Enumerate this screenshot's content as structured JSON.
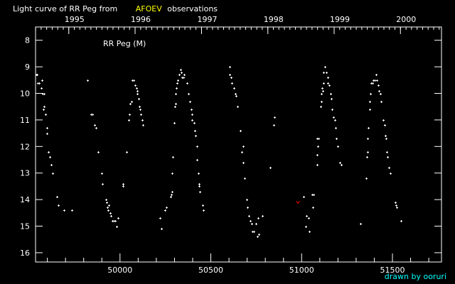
{
  "title": {
    "prefix": "Light curve of RR Peg from",
    "source": "AFOEV",
    "suffix": "observations"
  },
  "credit": "drawn by ooruri",
  "colors": {
    "background": "#000000",
    "axis": "#ffffff",
    "points": "#ffffff",
    "source": "#ffff00",
    "credit": "#00ffff",
    "upper_limit": "#ff0000"
  },
  "chart_data": {
    "type": "scatter",
    "annotation": "RR Peg (M)",
    "xlim": [
      49535,
      51770
    ],
    "ylim": [
      16.35,
      7.5
    ],
    "y_inverted": true,
    "grid": false,
    "x_ticks": [
      50000,
      50500,
      51000,
      51500
    ],
    "x_tick_labels": [
      "50000",
      "50500",
      "51000",
      "51500"
    ],
    "y_ticks": [
      8,
      9,
      10,
      11,
      12,
      13,
      14,
      15,
      16
    ],
    "y_tick_labels": [
      "8",
      "9",
      "10",
      "11",
      "12",
      "13",
      "14",
      "15",
      "16"
    ],
    "top_axis": {
      "labels": [
        "1995",
        "1996",
        "1997",
        "1998",
        "1999",
        "2000"
      ],
      "values": [
        49718,
        50083,
        50449,
        50814,
        51179,
        51544
      ]
    },
    "upper_limits": [
      [
        50980,
        14.1
      ]
    ],
    "points": [
      [
        49539,
        9.3
      ],
      [
        49543,
        9.3
      ],
      [
        49547,
        9.6
      ],
      [
        49555,
        9.6
      ],
      [
        49570,
        9.5
      ],
      [
        49566,
        9.8
      ],
      [
        49574,
        10.0
      ],
      [
        49582,
        10.0
      ],
      [
        49578,
        10.6
      ],
      [
        49582,
        10.5
      ],
      [
        49590,
        10.8
      ],
      [
        49598,
        11.3
      ],
      [
        49598,
        11.5
      ],
      [
        49605,
        12.2
      ],
      [
        49613,
        12.4
      ],
      [
        49621,
        12.7
      ],
      [
        49629,
        13.0
      ],
      [
        49652,
        13.9
      ],
      [
        49660,
        14.2
      ],
      [
        49691,
        14.4
      ],
      [
        49734,
        14.4
      ],
      [
        49820,
        9.5
      ],
      [
        49840,
        10.8
      ],
      [
        49848,
        10.8
      ],
      [
        49859,
        11.2
      ],
      [
        49867,
        11.3
      ],
      [
        49879,
        12.2
      ],
      [
        49898,
        13.0
      ],
      [
        49902,
        13.4
      ],
      [
        49922,
        14.0
      ],
      [
        49926,
        14.1
      ],
      [
        49930,
        14.3
      ],
      [
        49934,
        14.4
      ],
      [
        49938,
        14.2
      ],
      [
        49945,
        14.5
      ],
      [
        49949,
        14.6
      ],
      [
        49957,
        14.8
      ],
      [
        49965,
        14.8
      ],
      [
        49973,
        14.8
      ],
      [
        49980,
        15.0
      ],
      [
        49988,
        14.7
      ],
      [
        50016,
        13.4
      ],
      [
        50016,
        13.5
      ],
      [
        50035,
        12.2
      ],
      [
        50047,
        11.0
      ],
      [
        50051,
        10.8
      ],
      [
        50055,
        10.4
      ],
      [
        50062,
        10.3
      ],
      [
        50066,
        9.5
      ],
      [
        50074,
        9.5
      ],
      [
        50082,
        9.7
      ],
      [
        50090,
        9.8
      ],
      [
        50094,
        9.9
      ],
      [
        50094,
        10.0
      ],
      [
        50102,
        10.2
      ],
      [
        50105,
        10.5
      ],
      [
        50109,
        10.6
      ],
      [
        50113,
        10.8
      ],
      [
        50121,
        11.0
      ],
      [
        50125,
        11.2
      ],
      [
        50219,
        14.7
      ],
      [
        50227,
        15.1
      ],
      [
        50246,
        14.4
      ],
      [
        50254,
        14.3
      ],
      [
        50277,
        13.9
      ],
      [
        50281,
        13.8
      ],
      [
        50285,
        13.7
      ],
      [
        50285,
        13.0
      ],
      [
        50289,
        12.4
      ],
      [
        50297,
        11.1
      ],
      [
        50301,
        10.5
      ],
      [
        50305,
        10.4
      ],
      [
        50305,
        10.0
      ],
      [
        50309,
        9.8
      ],
      [
        50312,
        9.6
      ],
      [
        50316,
        9.5
      ],
      [
        50324,
        9.3
      ],
      [
        50332,
        9.1
      ],
      [
        50336,
        9.2
      ],
      [
        50340,
        9.4
      ],
      [
        50348,
        9.4
      ],
      [
        50355,
        9.3
      ],
      [
        50367,
        9.6
      ],
      [
        50375,
        10.0
      ],
      [
        50383,
        10.3
      ],
      [
        50391,
        10.6
      ],
      [
        50395,
        10.8
      ],
      [
        50398,
        11.0
      ],
      [
        50406,
        11.1
      ],
      [
        50410,
        11.4
      ],
      [
        50414,
        11.6
      ],
      [
        50422,
        12.0
      ],
      [
        50422,
        12.5
      ],
      [
        50430,
        13.0
      ],
      [
        50434,
        13.4
      ],
      [
        50437,
        13.5
      ],
      [
        50441,
        13.7
      ],
      [
        50453,
        14.2
      ],
      [
        50457,
        14.4
      ],
      [
        50605,
        9.0
      ],
      [
        50605,
        9.3
      ],
      [
        50613,
        9.4
      ],
      [
        50617,
        9.6
      ],
      [
        50629,
        9.8
      ],
      [
        50633,
        10.0
      ],
      [
        50637,
        10.1
      ],
      [
        50645,
        10.5
      ],
      [
        50664,
        11.4
      ],
      [
        50676,
        12.0
      ],
      [
        50672,
        12.2
      ],
      [
        50676,
        12.6
      ],
      [
        50687,
        13.2
      ],
      [
        50699,
        14.0
      ],
      [
        50703,
        14.3
      ],
      [
        50711,
        14.6
      ],
      [
        50719,
        14.8
      ],
      [
        50723,
        14.9
      ],
      [
        50730,
        15.2
      ],
      [
        50738,
        15.2
      ],
      [
        50750,
        14.9
      ],
      [
        50762,
        14.7
      ],
      [
        50785,
        14.6
      ],
      [
        50758,
        15.4
      ],
      [
        50766,
        15.3
      ],
      [
        50828,
        12.8
      ],
      [
        50848,
        11.2
      ],
      [
        50852,
        10.9
      ],
      [
        51012,
        13.9
      ],
      [
        51027,
        14.6
      ],
      [
        51039,
        14.7
      ],
      [
        51023,
        15.0
      ],
      [
        51043,
        15.2
      ],
      [
        51059,
        13.8
      ],
      [
        51066,
        13.8
      ],
      [
        51062,
        14.3
      ],
      [
        51086,
        12.7
      ],
      [
        51086,
        12.3
      ],
      [
        51090,
        12.0
      ],
      [
        51086,
        11.7
      ],
      [
        51094,
        11.7
      ],
      [
        51105,
        10.5
      ],
      [
        51109,
        10.3
      ],
      [
        51109,
        10.0
      ],
      [
        51117,
        9.9
      ],
      [
        51113,
        9.8
      ],
      [
        51121,
        9.6
      ],
      [
        51121,
        9.2
      ],
      [
        51129,
        9.0
      ],
      [
        51137,
        9.2
      ],
      [
        51144,
        9.4
      ],
      [
        51144,
        9.6
      ],
      [
        51152,
        9.7
      ],
      [
        51160,
        10.0
      ],
      [
        51164,
        10.2
      ],
      [
        51168,
        10.6
      ],
      [
        51176,
        10.9
      ],
      [
        51184,
        11.0
      ],
      [
        51187,
        11.3
      ],
      [
        51191,
        11.7
      ],
      [
        51199,
        12.0
      ],
      [
        51211,
        12.6
      ],
      [
        51219,
        12.7
      ],
      [
        51324,
        14.9
      ],
      [
        51355,
        13.2
      ],
      [
        51359,
        12.4
      ],
      [
        51363,
        12.2
      ],
      [
        51363,
        11.7
      ],
      [
        51367,
        11.3
      ],
      [
        51375,
        10.6
      ],
      [
        51375,
        10.3
      ],
      [
        51379,
        10.0
      ],
      [
        51383,
        9.6
      ],
      [
        51391,
        9.6
      ],
      [
        51394,
        9.5
      ],
      [
        51402,
        9.5
      ],
      [
        51410,
        9.3
      ],
      [
        51414,
        9.5
      ],
      [
        51422,
        9.7
      ],
      [
        51426,
        9.9
      ],
      [
        51434,
        10.0
      ],
      [
        51437,
        10.3
      ],
      [
        51449,
        11.0
      ],
      [
        51457,
        11.2
      ],
      [
        51461,
        11.6
      ],
      [
        51465,
        11.7
      ],
      [
        51469,
        12.2
      ],
      [
        51473,
        12.4
      ],
      [
        51480,
        12.8
      ],
      [
        51488,
        13.0
      ],
      [
        51516,
        14.1
      ],
      [
        51520,
        14.2
      ],
      [
        51523,
        14.3
      ],
      [
        51547,
        14.8
      ]
    ]
  }
}
